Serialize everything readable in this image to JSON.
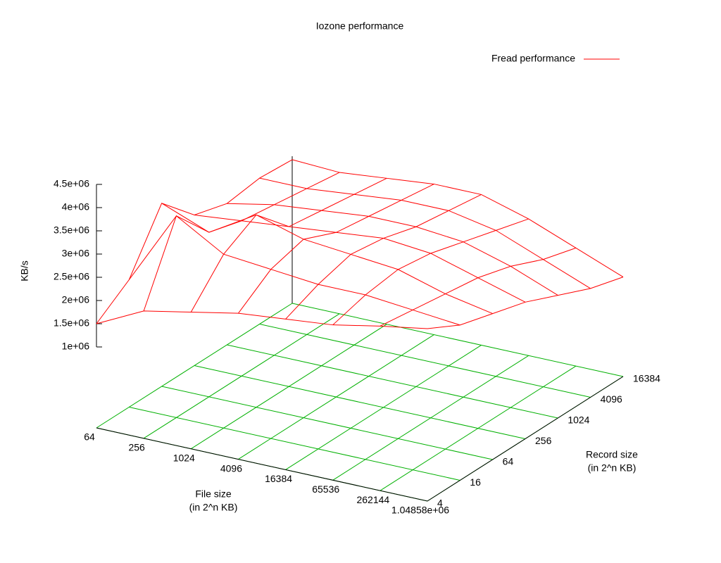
{
  "chart_data": {
    "type": "surface",
    "title": "Iozone performance",
    "xlabel": [
      "File size",
      "(in 2^n KB)"
    ],
    "ylabel": [
      "Record size",
      "(in 2^n KB)"
    ],
    "zlabel": "KB/s",
    "series": [
      {
        "name": "Fread performance",
        "color": "#ff0000"
      }
    ],
    "xticks": [
      64,
      256,
      1024,
      4096,
      16384,
      65536,
      262144,
      {
        "value": 1048576,
        "label": "1.04858e+06"
      }
    ],
    "yticks": [
      4,
      16,
      64,
      256,
      1024,
      4096,
      16384
    ],
    "zlim": [
      1000000,
      4500000
    ],
    "zticks": [
      {
        "value": 1000000,
        "label": "1e+06"
      },
      {
        "value": 1500000,
        "label": "1.5e+06"
      },
      {
        "value": 2000000,
        "label": "2e+06"
      },
      {
        "value": 2500000,
        "label": "2.5e+06"
      },
      {
        "value": 3000000,
        "label": "3e+06"
      },
      {
        "value": 3500000,
        "label": "3.5e+06"
      },
      {
        "value": 4000000,
        "label": "4e+06"
      },
      {
        "value": 4500000,
        "label": "4.5e+06"
      }
    ],
    "z": [
      [
        1500000,
        2000000,
        3200000,
        2500000,
        2300000,
        2400000,
        2350000
      ],
      [
        2000000,
        3600000,
        2800000,
        2600000,
        2500000,
        2400000,
        2300000
      ],
      [
        2200000,
        3000000,
        3400000,
        2700000,
        2600000,
        2500000,
        2400000
      ],
      [
        2400000,
        2900000,
        3100000,
        2800000,
        2700000,
        2600000,
        2500000
      ],
      [
        2500000,
        2800000,
        3000000,
        2900000,
        2700000,
        2600000,
        2500000
      ],
      [
        2600000,
        2800000,
        2900000,
        2800000,
        2600000,
        2400000,
        2200000
      ],
      [
        2800000,
        2700000,
        2600000,
        2500000,
        2300000,
        2000000,
        1800000
      ],
      [
        2970000,
        2600000,
        2400000,
        2200000,
        1900000,
        1600000,
        1400000
      ]
    ],
    "grid_color": "#00b000"
  }
}
